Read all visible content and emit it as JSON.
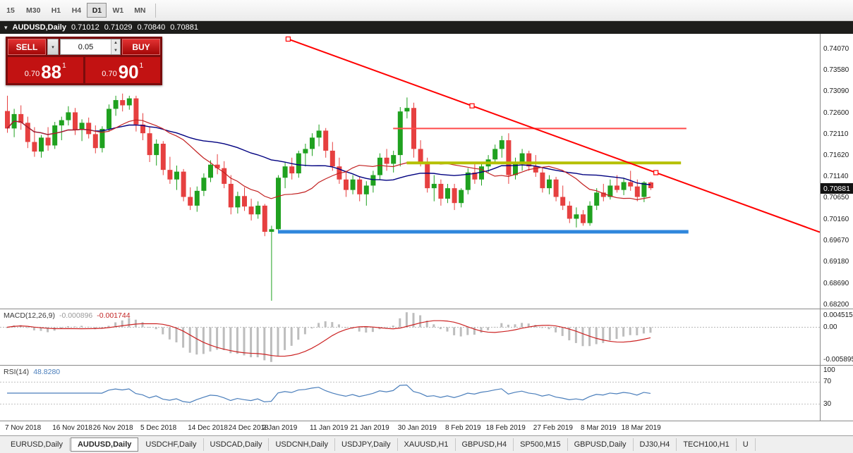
{
  "toolbar": {
    "timeframes": [
      "15",
      "M30",
      "H1",
      "H4",
      "D1",
      "W1",
      "MN"
    ],
    "active": "D1"
  },
  "title": {
    "symbol": "AUDUSD,Daily",
    "open": "0.71012",
    "high": "0.71029",
    "low": "0.70840",
    "close": "0.70881"
  },
  "icons": {
    "chart_menu": "▾",
    "dropdown": "▾",
    "spin_up": "▲",
    "spin_down": "▼"
  },
  "trade_panel": {
    "sell_label": "SELL",
    "buy_label": "BUY",
    "volume": "0.05",
    "bid_small": "0.70",
    "bid_big": "88",
    "bid_sup": "1",
    "ask_small": "0.70",
    "ask_big": "90",
    "ask_sup": "1"
  },
  "price_axis": {
    "labels": [
      "0.74070",
      "0.73580",
      "0.73090",
      "0.72600",
      "0.72110",
      "0.71620",
      "0.71140",
      "0.70650",
      "0.70160",
      "0.69670",
      "0.69180",
      "0.68690",
      "0.68200"
    ],
    "current": "0.70881"
  },
  "macd": {
    "label": "MACD(12,26,9)",
    "value_main": "-0.000896",
    "value_signal": "-0.001744",
    "axis": [
      "0.004515",
      "0.00",
      "-0.005895"
    ]
  },
  "rsi": {
    "label": "RSI(14)",
    "value": "48.8280",
    "axis": [
      "100",
      "70",
      "30"
    ],
    "levels": [
      70,
      30
    ]
  },
  "tabs": {
    "items": [
      "EURUSD,Daily",
      "AUDUSD,Daily",
      "USDCHF,Daily",
      "USDCAD,Daily",
      "USDCNH,Daily",
      "USDJPY,Daily",
      "XAUUSD,H1",
      "GBPUSD,H4",
      "SP500,M15",
      "GBPUSD,Daily",
      "DJ30,H4",
      "TECH100,H1",
      "U"
    ],
    "active": "AUDUSD,Daily"
  },
  "chart_data": {
    "type": "candlestick",
    "symbol": "AUDUSD",
    "timeframe": "Daily",
    "ylim": [
      0.6812,
      0.7442
    ],
    "colors": {
      "up": "#1fa11f",
      "down": "#e64040"
    },
    "x_labels": [
      {
        "bar": 0,
        "text": "7 Nov 2018"
      },
      {
        "bar": 7,
        "text": "16 Nov 2018"
      },
      {
        "bar": 13,
        "text": "26 Nov 2018"
      },
      {
        "bar": 20,
        "text": "5 Dec 2018"
      },
      {
        "bar": 27,
        "text": "14 Dec 2018"
      },
      {
        "bar": 33,
        "text": "24 Dec 2018"
      },
      {
        "bar": 38,
        "text": "2 Jan 2019"
      },
      {
        "bar": 45,
        "text": "11 Jan 2019"
      },
      {
        "bar": 51,
        "text": "21 Jan 2019"
      },
      {
        "bar": 58,
        "text": "30 Jan 2019"
      },
      {
        "bar": 65,
        "text": "8 Feb 2019"
      },
      {
        "bar": 71,
        "text": "18 Feb 2019"
      },
      {
        "bar": 78,
        "text": "27 Feb 2019"
      },
      {
        "bar": 85,
        "text": "8 Mar 2019"
      },
      {
        "bar": 91,
        "text": "18 Mar 2019"
      }
    ],
    "ohlc": [
      [
        0.7265,
        0.73,
        0.7215,
        0.7225
      ],
      [
        0.7225,
        0.727,
        0.7205,
        0.7258
      ],
      [
        0.7258,
        0.7278,
        0.7222,
        0.7238
      ],
      [
        0.7238,
        0.7252,
        0.718,
        0.7194
      ],
      [
        0.7194,
        0.7228,
        0.716,
        0.7172
      ],
      [
        0.7172,
        0.721,
        0.7158,
        0.7204
      ],
      [
        0.7204,
        0.7228,
        0.7174,
        0.7186
      ],
      [
        0.7186,
        0.724,
        0.7178,
        0.7232
      ],
      [
        0.7232,
        0.7252,
        0.7198,
        0.7244
      ],
      [
        0.7244,
        0.7276,
        0.7232,
        0.7262
      ],
      [
        0.7262,
        0.7272,
        0.721,
        0.7222
      ],
      [
        0.7222,
        0.7246,
        0.7196,
        0.7238
      ],
      [
        0.7238,
        0.725,
        0.7202,
        0.7212
      ],
      [
        0.7212,
        0.7232,
        0.7168,
        0.718
      ],
      [
        0.718,
        0.723,
        0.717,
        0.7224
      ],
      [
        0.7224,
        0.728,
        0.7218,
        0.727
      ],
      [
        0.727,
        0.73,
        0.7254,
        0.729
      ],
      [
        0.729,
        0.7305,
        0.7264,
        0.7278
      ],
      [
        0.7278,
        0.73,
        0.7268,
        0.7294
      ],
      [
        0.7294,
        0.73,
        0.7218,
        0.7234
      ],
      [
        0.7234,
        0.726,
        0.7198,
        0.7214
      ],
      [
        0.7214,
        0.723,
        0.7148,
        0.7164
      ],
      [
        0.7164,
        0.72,
        0.714,
        0.719
      ],
      [
        0.719,
        0.7196,
        0.7118,
        0.713
      ],
      [
        0.713,
        0.716,
        0.7098,
        0.7108
      ],
      [
        0.7108,
        0.714,
        0.7084,
        0.7126
      ],
      [
        0.7126,
        0.7132,
        0.7058,
        0.7068
      ],
      [
        0.7068,
        0.709,
        0.7038,
        0.7048
      ],
      [
        0.7048,
        0.7092,
        0.7034,
        0.7082
      ],
      [
        0.7082,
        0.7122,
        0.707,
        0.7112
      ],
      [
        0.7112,
        0.7152,
        0.7102,
        0.7142
      ],
      [
        0.7142,
        0.7166,
        0.712,
        0.7134
      ],
      [
        0.7134,
        0.715,
        0.7088,
        0.7098
      ],
      [
        0.7098,
        0.7118,
        0.7028,
        0.7044
      ],
      [
        0.7044,
        0.708,
        0.703,
        0.707
      ],
      [
        0.707,
        0.709,
        0.7036,
        0.7046
      ],
      [
        0.7046,
        0.7064,
        0.7014,
        0.7028
      ],
      [
        0.7028,
        0.7058,
        0.7018,
        0.7048
      ],
      [
        0.7048,
        0.7052,
        0.6978,
        0.6988
      ],
      [
        0.6988,
        0.7002,
        0.683,
        0.6994
      ],
      [
        0.6994,
        0.7118,
        0.6984,
        0.7112
      ],
      [
        0.7112,
        0.7148,
        0.7088,
        0.7138
      ],
      [
        0.7138,
        0.7158,
        0.7108,
        0.7122
      ],
      [
        0.7122,
        0.7174,
        0.7112,
        0.7168
      ],
      [
        0.7168,
        0.719,
        0.7138,
        0.7178
      ],
      [
        0.7178,
        0.7214,
        0.7162,
        0.7204
      ],
      [
        0.7204,
        0.7234,
        0.7184,
        0.722
      ],
      [
        0.722,
        0.7226,
        0.7158,
        0.7174
      ],
      [
        0.7174,
        0.7194,
        0.7128,
        0.7138
      ],
      [
        0.7138,
        0.7158,
        0.7098,
        0.7108
      ],
      [
        0.7108,
        0.7128,
        0.7068,
        0.7084
      ],
      [
        0.7084,
        0.7118,
        0.7074,
        0.7108
      ],
      [
        0.7108,
        0.7114,
        0.7058,
        0.7074
      ],
      [
        0.7074,
        0.7104,
        0.7048,
        0.7094
      ],
      [
        0.7094,
        0.7128,
        0.7078,
        0.7118
      ],
      [
        0.7118,
        0.7168,
        0.7108,
        0.7158
      ],
      [
        0.7158,
        0.7178,
        0.7128,
        0.7144
      ],
      [
        0.7144,
        0.7174,
        0.7124,
        0.7164
      ],
      [
        0.7164,
        0.7274,
        0.7138,
        0.7264
      ],
      [
        0.7264,
        0.7296,
        0.7248,
        0.7272
      ],
      [
        0.7272,
        0.7284,
        0.7158,
        0.7178
      ],
      [
        0.7178,
        0.7198,
        0.7138,
        0.7148
      ],
      [
        0.7148,
        0.7158,
        0.7078,
        0.7088
      ],
      [
        0.7088,
        0.7118,
        0.7058,
        0.7098
      ],
      [
        0.7098,
        0.7108,
        0.7048,
        0.7064
      ],
      [
        0.7064,
        0.7098,
        0.7054,
        0.7088
      ],
      [
        0.7088,
        0.7098,
        0.7038,
        0.7054
      ],
      [
        0.7054,
        0.7088,
        0.7044,
        0.7084
      ],
      [
        0.7084,
        0.7134,
        0.7074,
        0.7124
      ],
      [
        0.7124,
        0.7148,
        0.7098,
        0.7108
      ],
      [
        0.7108,
        0.7144,
        0.7094,
        0.7138
      ],
      [
        0.7138,
        0.7164,
        0.7124,
        0.7154
      ],
      [
        0.7154,
        0.7188,
        0.7144,
        0.7178
      ],
      [
        0.7178,
        0.7208,
        0.7158,
        0.7198
      ],
      [
        0.7198,
        0.7214,
        0.7098,
        0.7118
      ],
      [
        0.7118,
        0.7158,
        0.7108,
        0.7148
      ],
      [
        0.7148,
        0.7178,
        0.7128,
        0.7168
      ],
      [
        0.7168,
        0.7174,
        0.7128,
        0.7138
      ],
      [
        0.7138,
        0.7164,
        0.7114,
        0.7124
      ],
      [
        0.7124,
        0.7134,
        0.7078,
        0.7088
      ],
      [
        0.7088,
        0.7118,
        0.7074,
        0.7108
      ],
      [
        0.7108,
        0.7114,
        0.7058,
        0.7068
      ],
      [
        0.7068,
        0.7094,
        0.7038,
        0.7048
      ],
      [
        0.7048,
        0.7058,
        0.7008,
        0.7018
      ],
      [
        0.7018,
        0.7044,
        0.6998,
        0.7028
      ],
      [
        0.7028,
        0.7038,
        0.7002,
        0.7008
      ],
      [
        0.7008,
        0.7058,
        0.7002,
        0.7048
      ],
      [
        0.7048,
        0.7088,
        0.7038,
        0.7078
      ],
      [
        0.7078,
        0.7098,
        0.7058,
        0.7068
      ],
      [
        0.7068,
        0.7108,
        0.7062,
        0.7094
      ],
      [
        0.7094,
        0.7118,
        0.7078,
        0.7084
      ],
      [
        0.7084,
        0.7112,
        0.7072,
        0.7102
      ],
      [
        0.7102,
        0.7128,
        0.7082,
        0.7092
      ],
      [
        0.7092,
        0.7108,
        0.7058,
        0.7068
      ],
      [
        0.7068,
        0.7104,
        0.7056,
        0.7101
      ],
      [
        0.71012,
        0.71029,
        0.7084,
        0.70881
      ]
    ],
    "moving_averages": [
      {
        "name": "ma-slow-navy",
        "period": 34,
        "color": "#000080",
        "width": 1.4
      },
      {
        "name": "ma-fast-red",
        "period": 13,
        "color": "#c22020",
        "width": 1.2
      }
    ],
    "objects": {
      "trendline": {
        "color": "#ff0000",
        "bar1": 41.5,
        "p1": 0.743,
        "bar2": 95.8,
        "p2": 0.71237,
        "ray": true,
        "selected": true
      },
      "hlines": [
        {
          "name": "resistance-red",
          "color": "#ff4a4a",
          "price": 0.7225,
          "bar_start": 57,
          "bar_end": 100.3,
          "width": 2
        },
        {
          "name": "level-olive",
          "color": "#b5c000",
          "price": 0.7146,
          "bar_start": 59,
          "bar_end": 99.5,
          "width": 4
        },
        {
          "name": "support-blue",
          "color": "#2f87dc",
          "price": 0.6988,
          "bar_start": 40,
          "bar_end": 100.6,
          "width": 5
        }
      ]
    }
  }
}
